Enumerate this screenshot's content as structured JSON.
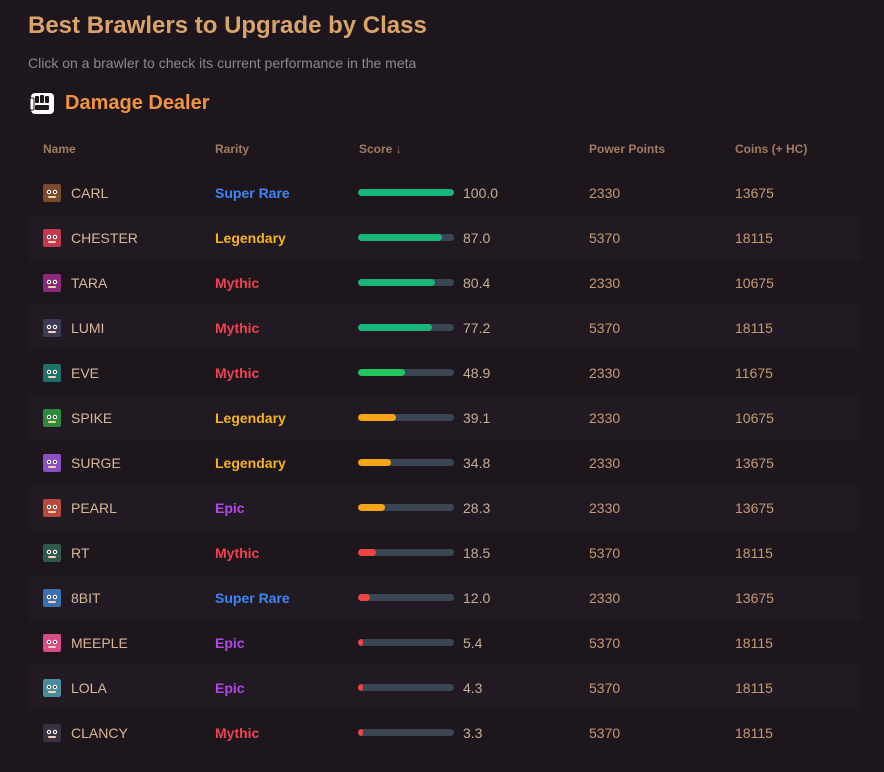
{
  "header": {
    "title": "Best Brawlers to Upgrade by Class",
    "subtitle": "Click on a brawler to check its current performance in the meta"
  },
  "section": {
    "title": "Damage Dealer",
    "icon": "damage-dealer-fist-icon"
  },
  "columns": {
    "name": "Name",
    "rarity": "Rarity",
    "score": "Score ↓",
    "power_points": "Power Points",
    "coins": "Coins (+ HC)"
  },
  "rarity_colors": {
    "Super Rare": "#3d86f7",
    "Legendary": "#f5b41d",
    "Mythic": "#ef4350",
    "Epic": "#b04ae6"
  },
  "score_colors": {
    "high": "#19b57a",
    "midhigh": "#22c55e",
    "mid": "#f5a516",
    "low": "#ef4444"
  },
  "rows": [
    {
      "name": "CARL",
      "rarity": "Super Rare",
      "score": "100.0",
      "power_points": "2330",
      "coins": "13675",
      "avatar_color": "#7a4a2a"
    },
    {
      "name": "CHESTER",
      "rarity": "Legendary",
      "score": "87.0",
      "power_points": "5370",
      "coins": "18115",
      "avatar_color": "#c0394d"
    },
    {
      "name": "TARA",
      "rarity": "Mythic",
      "score": "80.4",
      "power_points": "2330",
      "coins": "10675",
      "avatar_color": "#8b2a7a"
    },
    {
      "name": "LUMI",
      "rarity": "Mythic",
      "score": "77.2",
      "power_points": "5370",
      "coins": "18115",
      "avatar_color": "#3b3b55"
    },
    {
      "name": "EVE",
      "rarity": "Mythic",
      "score": "48.9",
      "power_points": "2330",
      "coins": "11675",
      "avatar_color": "#1f6f6a"
    },
    {
      "name": "SPIKE",
      "rarity": "Legendary",
      "score": "39.1",
      "power_points": "2330",
      "coins": "10675",
      "avatar_color": "#2c8a3a"
    },
    {
      "name": "SURGE",
      "rarity": "Legendary",
      "score": "34.8",
      "power_points": "2330",
      "coins": "13675",
      "avatar_color": "#8a4fc4"
    },
    {
      "name": "PEARL",
      "rarity": "Epic",
      "score": "28.3",
      "power_points": "2330",
      "coins": "13675",
      "avatar_color": "#b54a3a"
    },
    {
      "name": "RT",
      "rarity": "Mythic",
      "score": "18.5",
      "power_points": "5370",
      "coins": "18115",
      "avatar_color": "#2f5a4a"
    },
    {
      "name": "8BIT",
      "rarity": "Super Rare",
      "score": "12.0",
      "power_points": "2330",
      "coins": "13675",
      "avatar_color": "#3a6fb0"
    },
    {
      "name": "MEEPLE",
      "rarity": "Epic",
      "score": "5.4",
      "power_points": "5370",
      "coins": "18115",
      "avatar_color": "#d94a8a"
    },
    {
      "name": "LOLA",
      "rarity": "Epic",
      "score": "4.3",
      "power_points": "5370",
      "coins": "18115",
      "avatar_color": "#4a8a9a"
    },
    {
      "name": "CLANCY",
      "rarity": "Mythic",
      "score": "3.3",
      "power_points": "5370",
      "coins": "18115",
      "avatar_color": "#3a3040"
    }
  ]
}
